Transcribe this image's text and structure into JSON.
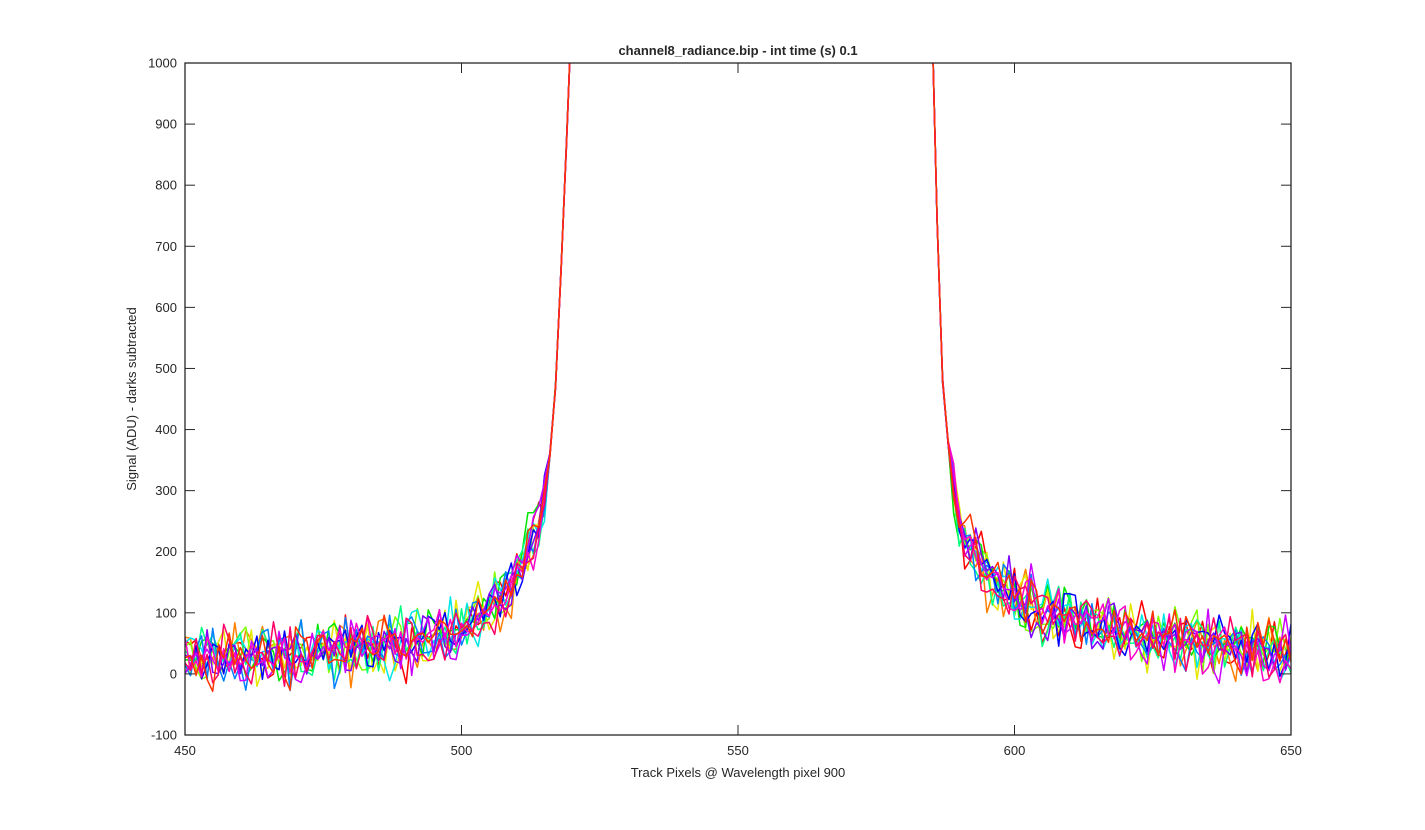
{
  "chart_data": {
    "type": "line",
    "title": "channel8_radiance.bip - int time (s) 0.1",
    "xlabel": "Track Pixels @ Wavelength pixel 900",
    "ylabel": "Signal (ADU) - darks subtracted",
    "xlim": [
      450,
      650
    ],
    "ylim": [
      -100,
      1000
    ],
    "xticks": [
      450,
      500,
      550,
      600,
      650
    ],
    "yticks": [
      -100,
      0,
      100,
      200,
      300,
      400,
      500,
      600,
      700,
      800,
      900,
      1000
    ],
    "grid": false,
    "legend": "none",
    "line_width": 1.5,
    "noise_amplitude": 45,
    "envelope": {
      "x": [
        450,
        470,
        480,
        490,
        495,
        500,
        503,
        506,
        509,
        511,
        513,
        515,
        516,
        517,
        517.7,
        518.5,
        519.2,
        520,
        585,
        585.5,
        586.3,
        587,
        588,
        589,
        590,
        592,
        595,
        598,
        602,
        610,
        620,
        630,
        640,
        650
      ],
      "y": [
        30,
        35,
        40,
        50,
        60,
        75,
        90,
        110,
        145,
        180,
        225,
        290,
        360,
        470,
        600,
        760,
        920,
        1100,
        1100,
        900,
        650,
        480,
        380,
        300,
        250,
        200,
        165,
        135,
        110,
        90,
        70,
        55,
        45,
        35
      ]
    },
    "series_colors": [
      "#ff0000",
      "#ff8000",
      "#e6e600",
      "#80ff00",
      "#00e600",
      "#00ff80",
      "#00e6e6",
      "#0080ff",
      "#0000ff",
      "#8000ff",
      "#cc00ff",
      "#ff00cc",
      "#ff0066",
      "#ff3300"
    ]
  }
}
